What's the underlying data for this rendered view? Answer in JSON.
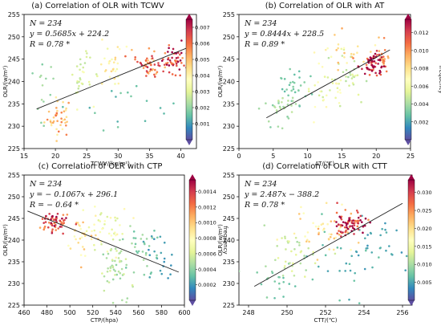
{
  "chart_data": [
    {
      "type": "scatter",
      "title": "(a)  Correlation of OLR with TCWV",
      "xlabel": "TCWV/(kg/m²)",
      "ylabel": "OLR/(w/m²)",
      "colorbar_label": "",
      "xlim": [
        15,
        42.5
      ],
      "ylim": [
        225,
        255
      ],
      "xticks": [
        "15",
        "20",
        "25",
        "30",
        "35",
        "40"
      ],
      "yticks": [
        "225",
        "230",
        "235",
        "240",
        "245",
        "250",
        "255"
      ],
      "cmin": 0.0,
      "cmax": 0.0075,
      "cticks": [
        "0.001",
        "0.002",
        "0.003",
        "0.004",
        "0.005",
        "0.006",
        "0.007"
      ],
      "annotations": [
        "N = 234",
        "y = 0.5685x + 224.2",
        "R = 0.78 *"
      ],
      "regression": {
        "slope": 0.5685,
        "intercept": 224.2,
        "x_from": 17,
        "x_to": 41
      },
      "clusters": [
        {
          "x": 20.5,
          "y": 232.0,
          "sx": 1.1,
          "sy": 2.2,
          "n": 40,
          "c": 0.005
        },
        {
          "x": 17.8,
          "y": 238.0,
          "sx": 1.0,
          "sy": 3.5,
          "n": 14,
          "c": 0.002
        },
        {
          "x": 24.3,
          "y": 241.0,
          "sx": 0.9,
          "sy": 3.0,
          "n": 30,
          "c": 0.003
        },
        {
          "x": 29.0,
          "y": 243.0,
          "sx": 1.0,
          "sy": 2.5,
          "n": 30,
          "c": 0.004
        },
        {
          "x": 35.0,
          "y": 243.8,
          "sx": 1.1,
          "sy": 1.6,
          "n": 50,
          "c": 0.006
        },
        {
          "x": 39.0,
          "y": 245.0,
          "sx": 1.1,
          "sy": 1.5,
          "n": 50,
          "c": 0.0068
        },
        {
          "x": 28.0,
          "y": 234.0,
          "sx": 7.0,
          "sy": 4.0,
          "n": 20,
          "c": 0.0015
        }
      ]
    },
    {
      "type": "scatter",
      "title": "(b)  Correlation of OLR with AT",
      "xlabel": "AT/(℃)",
      "ylabel": "OLR/(w/m²)",
      "colorbar_label": "frequency",
      "xlim": [
        0,
        25
      ],
      "ylim": [
        225,
        255
      ],
      "xticks": [
        "0",
        "5",
        "10",
        "15",
        "20",
        "25"
      ],
      "yticks": [
        "225",
        "230",
        "235",
        "240",
        "245",
        "250",
        "255"
      ],
      "cmin": 0.0,
      "cmax": 0.0135,
      "cticks": [
        "0.002",
        "0.004",
        "0.006",
        "0.008",
        "0.010",
        "0.012"
      ],
      "annotations": [
        "N = 234",
        "y = 0.8444x + 228.5",
        "R = 0.89 *"
      ],
      "regression": {
        "slope": 0.8444,
        "intercept": 228.5,
        "x_from": 4,
        "x_to": 22
      },
      "clusters": [
        {
          "x": 5.5,
          "y": 234.0,
          "sx": 1.2,
          "sy": 2.5,
          "n": 30,
          "c": 0.004
        },
        {
          "x": 8.0,
          "y": 238.0,
          "sx": 1.5,
          "sy": 2.5,
          "n": 30,
          "c": 0.003
        },
        {
          "x": 12.5,
          "y": 238.0,
          "sx": 1.5,
          "sy": 2.5,
          "n": 30,
          "c": 0.006
        },
        {
          "x": 15.5,
          "y": 242.0,
          "sx": 1.3,
          "sy": 2.5,
          "n": 30,
          "c": 0.005
        },
        {
          "x": 19.5,
          "y": 244.0,
          "sx": 1.0,
          "sy": 1.2,
          "n": 64,
          "c": 0.0125
        },
        {
          "x": 21.0,
          "y": 245.0,
          "sx": 0.6,
          "sy": 1.5,
          "n": 25,
          "c": 0.0095
        },
        {
          "x": 14.0,
          "y": 247.0,
          "sx": 2.5,
          "sy": 2.5,
          "n": 25,
          "c": 0.008
        }
      ]
    },
    {
      "type": "scatter",
      "title": "(c)  Correlation of OLR with CTP",
      "xlabel": "CTP/(hpa)",
      "ylabel": "OLR/(w/m²)",
      "colorbar_label": "frequency",
      "xlim": [
        460,
        600
      ],
      "ylim": [
        225,
        255
      ],
      "xticks": [
        "460",
        "480",
        "500",
        "520",
        "540",
        "560",
        "580",
        "600"
      ],
      "yticks": [
        "225",
        "230",
        "235",
        "240",
        "245",
        "250",
        "255"
      ],
      "cmin": 0.0,
      "cmax": 0.00155,
      "cticks": [
        "0.0002",
        "0.0004",
        "0.0006",
        "0.0008",
        "0.0010",
        "0.0012",
        "0.0014"
      ],
      "annotations": [
        "N = 234",
        "y = − 0.1067x + 296.1",
        "R = − 0.64 *"
      ],
      "regression": {
        "slope": -0.1067,
        "intercept": 296.1,
        "x_from": 463,
        "x_to": 595
      },
      "clusters": [
        {
          "x": 486.0,
          "y": 244.0,
          "sx": 7.0,
          "sy": 1.2,
          "n": 60,
          "c": 0.0013
        },
        {
          "x": 510.0,
          "y": 241.0,
          "sx": 7.0,
          "sy": 2.5,
          "n": 30,
          "c": 0.0009
        },
        {
          "x": 540.0,
          "y": 234.0,
          "sx": 7.0,
          "sy": 3.0,
          "n": 50,
          "c": 0.0005
        },
        {
          "x": 560.0,
          "y": 238.0,
          "sx": 9.0,
          "sy": 3.0,
          "n": 35,
          "c": 0.0004
        },
        {
          "x": 580.0,
          "y": 236.0,
          "sx": 7.0,
          "sy": 3.0,
          "n": 20,
          "c": 0.0002
        },
        {
          "x": 530.0,
          "y": 242.0,
          "sx": 12.0,
          "sy": 3.0,
          "n": 39,
          "c": 0.0007
        }
      ]
    },
    {
      "type": "scatter",
      "title": "(d)  Correlation of OLR with CTT",
      "xlabel": "CTT/(℃)",
      "ylabel": "OLR/(w/m²)",
      "colorbar_label": "frequency",
      "xlim": [
        247.5,
        256.5
      ],
      "ylim": [
        225,
        255
      ],
      "xticks": [
        "248",
        "250",
        "252",
        "254",
        "256"
      ],
      "yticks": [
        "225",
        "230",
        "235",
        "240",
        "245",
        "250",
        "255"
      ],
      "cmin": 0.0,
      "cmax": 0.0335,
      "cticks": [
        "0.005",
        "0.010",
        "0.015",
        "0.020",
        "0.025",
        "0.030"
      ],
      "annotations": [
        "N = 234",
        "y = 2.487x − 388.2",
        "R = 0.78 *"
      ],
      "regression": {
        "slope": 2.487,
        "intercept": -388.2,
        "x_from": 248.3,
        "x_to": 256.0
      },
      "clusters": [
        {
          "x": 253.3,
          "y": 244.0,
          "sx": 0.45,
          "sy": 1.3,
          "n": 70,
          "c": 0.031
        },
        {
          "x": 252.0,
          "y": 242.0,
          "sx": 0.8,
          "sy": 2.5,
          "n": 50,
          "c": 0.02
        },
        {
          "x": 250.5,
          "y": 236.0,
          "sx": 0.8,
          "sy": 3.0,
          "n": 40,
          "c": 0.012
        },
        {
          "x": 249.5,
          "y": 231.0,
          "sx": 0.6,
          "sy": 2.0,
          "n": 20,
          "c": 0.008
        },
        {
          "x": 254.5,
          "y": 238.0,
          "sx": 1.0,
          "sy": 4.0,
          "n": 34,
          "c": 0.005
        },
        {
          "x": 252.5,
          "y": 235.0,
          "sx": 1.2,
          "sy": 4.0,
          "n": 20,
          "c": 0.006
        }
      ]
    }
  ]
}
